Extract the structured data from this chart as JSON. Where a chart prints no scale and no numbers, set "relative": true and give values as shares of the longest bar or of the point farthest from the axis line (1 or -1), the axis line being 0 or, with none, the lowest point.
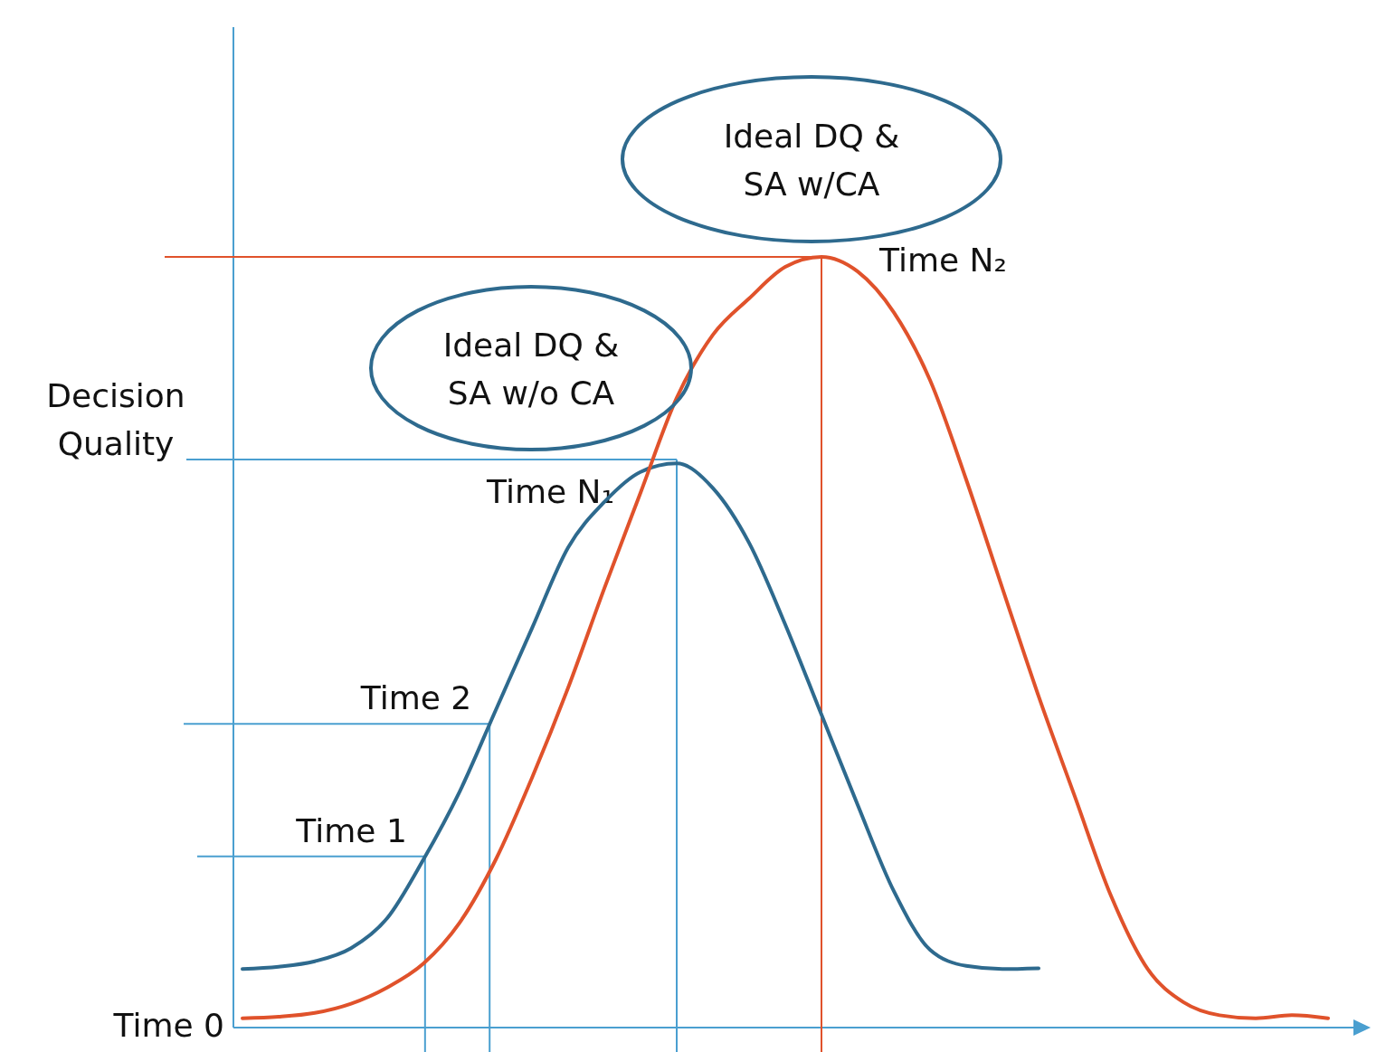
{
  "chart_data": {
    "type": "line",
    "relative": true,
    "ylabel": "Decision Quality",
    "categories": [
      null,
      null,
      null,
      null,
      null,
      null,
      null,
      null,
      null,
      null,
      null,
      null,
      null,
      null,
      null,
      null,
      null,
      null,
      null,
      null,
      null,
      null,
      null,
      null,
      null,
      null,
      null,
      null,
      null,
      null,
      null
    ],
    "series": [
      {
        "color": "#2e6a8e",
        "values": [
          0.076,
          0.079,
          0.086,
          0.103,
          0.142,
          0.218,
          0.306,
          0.412,
          0.518,
          0.623,
          0.682,
          0.721,
          0.732,
          0.7,
          0.629,
          0.523,
          0.406,
          0.289,
          0.177,
          0.101,
          0.08,
          0.076,
          0.077,
          null,
          null,
          null,
          null,
          null,
          null,
          null,
          null
        ]
      },
      {
        "color": "#e0522b",
        "values": [
          0.012,
          0.014,
          0.019,
          0.031,
          0.052,
          0.083,
          0.136,
          0.218,
          0.324,
          0.441,
          0.57,
          0.694,
          0.817,
          0.899,
          0.946,
          0.987,
          1.0,
          0.981,
          0.928,
          0.84,
          0.711,
          0.57,
          0.43,
          0.3,
          0.171,
          0.077,
          0.033,
          0.016,
          0.012,
          0.016,
          0.012
        ]
      }
    ],
    "ref_lines": [
      {
        "axis": "y",
        "value": 0.222,
        "label": "Time 1",
        "color": "#4a9fd0"
      },
      {
        "axis": "y",
        "value": 0.394,
        "label": "Time 2",
        "color": "#4a9fd0"
      },
      {
        "axis": "y",
        "value": 0.737,
        "label": "Time N₁",
        "color": "#4a9fd0"
      },
      {
        "axis": "y",
        "value": 1.0,
        "label": "Time N₂",
        "color": "#e0522b"
      }
    ],
    "annotations": [
      "Time 0",
      "Ideal DQ & SA w/o CA",
      "Ideal DQ & SA w/CA"
    ]
  }
}
